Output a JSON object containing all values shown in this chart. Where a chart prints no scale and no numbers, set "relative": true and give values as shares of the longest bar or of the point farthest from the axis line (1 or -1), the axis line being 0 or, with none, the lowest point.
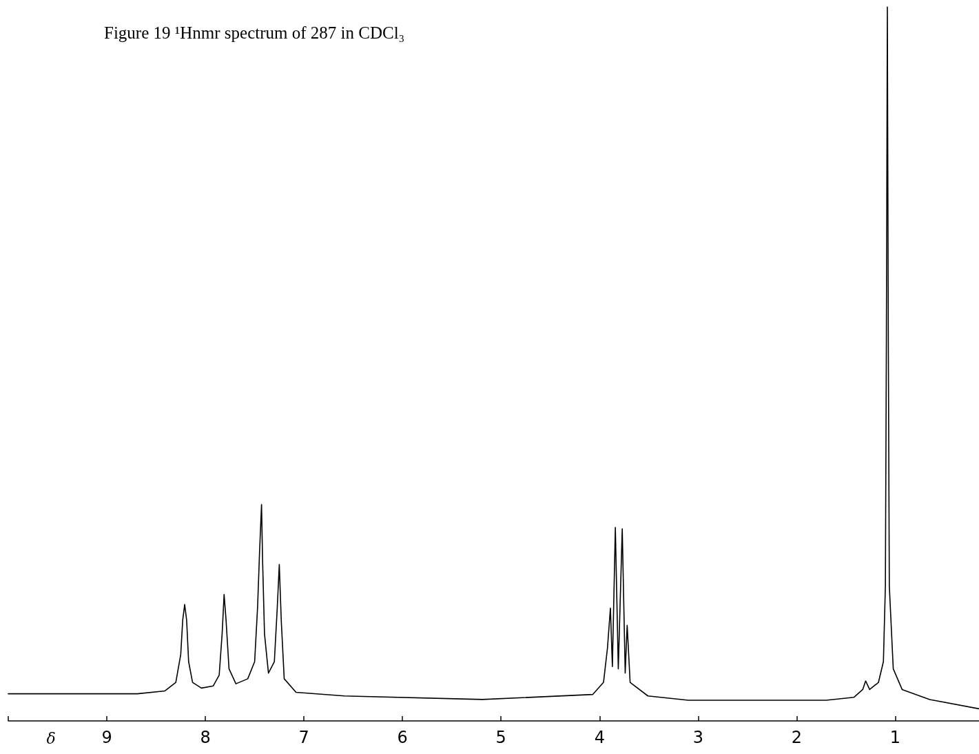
{
  "chart_data": {
    "type": "line",
    "title": "Figure 19 ¹Hnmr spectrum of 287 in CDCl₃",
    "xlabel": "δ",
    "relative": true,
    "grid": false,
    "marker": "none",
    "line_style": "solid",
    "xlim": [
      10,
      0.15
    ],
    "xticks": [
      {
        "value": 10,
        "label": null
      },
      9,
      8,
      7,
      6,
      5,
      4,
      3,
      2,
      1
    ],
    "series": [
      {
        "color": "#000000",
        "x": [
          10.0,
          8.69,
          8.41,
          8.3,
          8.25,
          8.23,
          8.21,
          8.19,
          8.17,
          8.13,
          8.04,
          7.92,
          7.86,
          7.83,
          7.81,
          7.79,
          7.76,
          7.69,
          7.57,
          7.5,
          7.47,
          7.45,
          7.43,
          7.42,
          7.4,
          7.36,
          7.3,
          7.27,
          7.25,
          7.23,
          7.2,
          7.08,
          6.59,
          5.19,
          4.07,
          3.96,
          3.92,
          3.89,
          3.87,
          3.84,
          3.81,
          3.77,
          3.74,
          3.72,
          3.69,
          3.51,
          3.1,
          1.7,
          1.42,
          1.33,
          1.3,
          1.26,
          1.17,
          1.12,
          1.1,
          1.09,
          1.08,
          1.07,
          1.06,
          1.02,
          0.93,
          0.65,
          0.15
        ],
        "values": [
          0.038,
          0.038,
          0.042,
          0.054,
          0.093,
          0.141,
          0.163,
          0.141,
          0.083,
          0.054,
          0.046,
          0.049,
          0.064,
          0.122,
          0.177,
          0.141,
          0.073,
          0.052,
          0.059,
          0.083,
          0.16,
          0.237,
          0.303,
          0.228,
          0.122,
          0.067,
          0.083,
          0.16,
          0.219,
          0.141,
          0.059,
          0.04,
          0.035,
          0.03,
          0.037,
          0.054,
          0.102,
          0.158,
          0.076,
          0.271,
          0.073,
          0.269,
          0.067,
          0.134,
          0.054,
          0.035,
          0.029,
          0.029,
          0.033,
          0.044,
          0.056,
          0.044,
          0.054,
          0.083,
          0.189,
          0.527,
          1.0,
          0.527,
          0.189,
          0.073,
          0.044,
          0.03,
          0.017
        ]
      }
    ]
  }
}
